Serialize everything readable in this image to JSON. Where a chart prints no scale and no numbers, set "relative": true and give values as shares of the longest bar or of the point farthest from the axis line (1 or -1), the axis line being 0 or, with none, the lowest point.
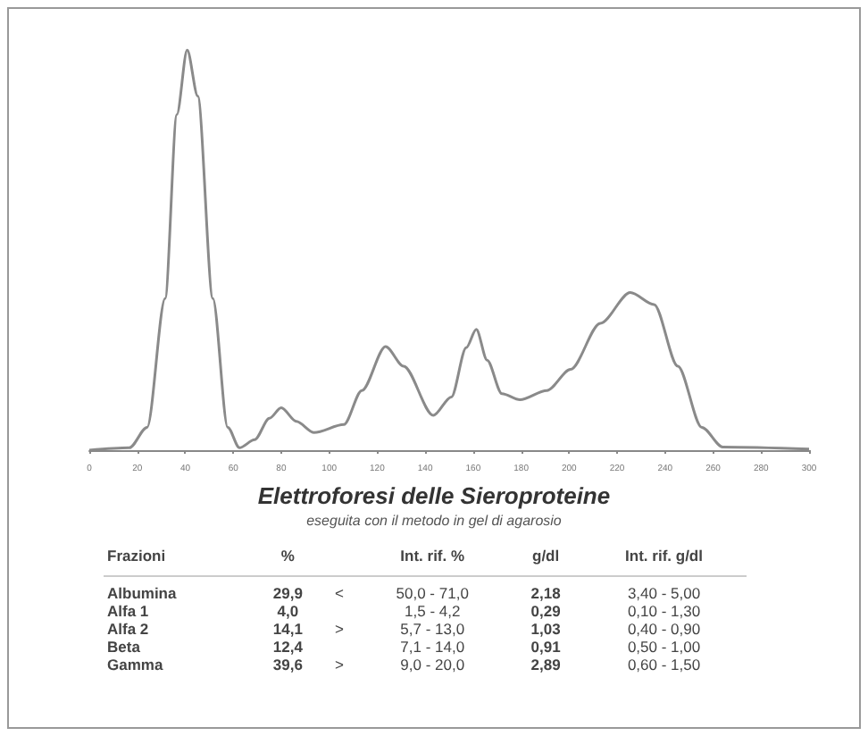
{
  "chart_data": {
    "type": "line",
    "title": "Elettroforesi delle Sieroproteine",
    "subtitle": "eseguita con il metodo in gel di agarosio",
    "relative": true,
    "marker": "none",
    "x": [
      0,
      16.7,
      24.1,
      31.6,
      36.5,
      40.8,
      45.2,
      51.5,
      57.7,
      62.6,
      68.9,
      75.1,
      80.0,
      86.3,
      93.7,
      106.1,
      113.6,
      123.5,
      131.0,
      143.4,
      150.9,
      157.1,
      161.3,
      165.8,
      172.0,
      179.5,
      190.7,
      200.6,
      213.0,
      225.5,
      235.4,
      245.3,
      255.3,
      264.0,
      300
    ],
    "xlim": [
      0,
      300
    ],
    "xticks": [
      0,
      20,
      40,
      60,
      80,
      100,
      120,
      140,
      160,
      180,
      200,
      220,
      240,
      260,
      280,
      300
    ],
    "series": [
      {
        "color": "#8a8a8a",
        "values": [
          0,
          0.006,
          0.057,
          0.379,
          0.839,
          1,
          0.885,
          0.379,
          0.057,
          0.006,
          0.026,
          0.08,
          0.106,
          0.072,
          0.044,
          0.064,
          0.149,
          0.259,
          0.21,
          0.087,
          0.133,
          0.256,
          0.302,
          0.225,
          0.141,
          0.126,
          0.149,
          0.202,
          0.317,
          0.394,
          0.364,
          0.21,
          0.057,
          0.008,
          0.003
        ]
      }
    ],
    "annotations": [
      "Frazioni\t%\t\tInt. rif. %\tg/dl\tInt. rif. g/dl",
      "Albumina\t29,9\t<\t50,0 - 71,0\t2,18\t3,40 - 5,00",
      "Alfa 1\t4,0\t\t1,5 - 4,2\t0,29\t0,10 - 1,30",
      "Alfa 2\t14,1\t>\t5,7 - 13,0\t1,03\t0,40 - 0,90",
      "Beta\t12,4\t\t7,1 - 14,0\t0,91\t0,50 - 1,00",
      "Gamma\t39,6\t>\t9,0 - 20,0\t2,89\t0,60 - 1,50"
    ]
  }
}
